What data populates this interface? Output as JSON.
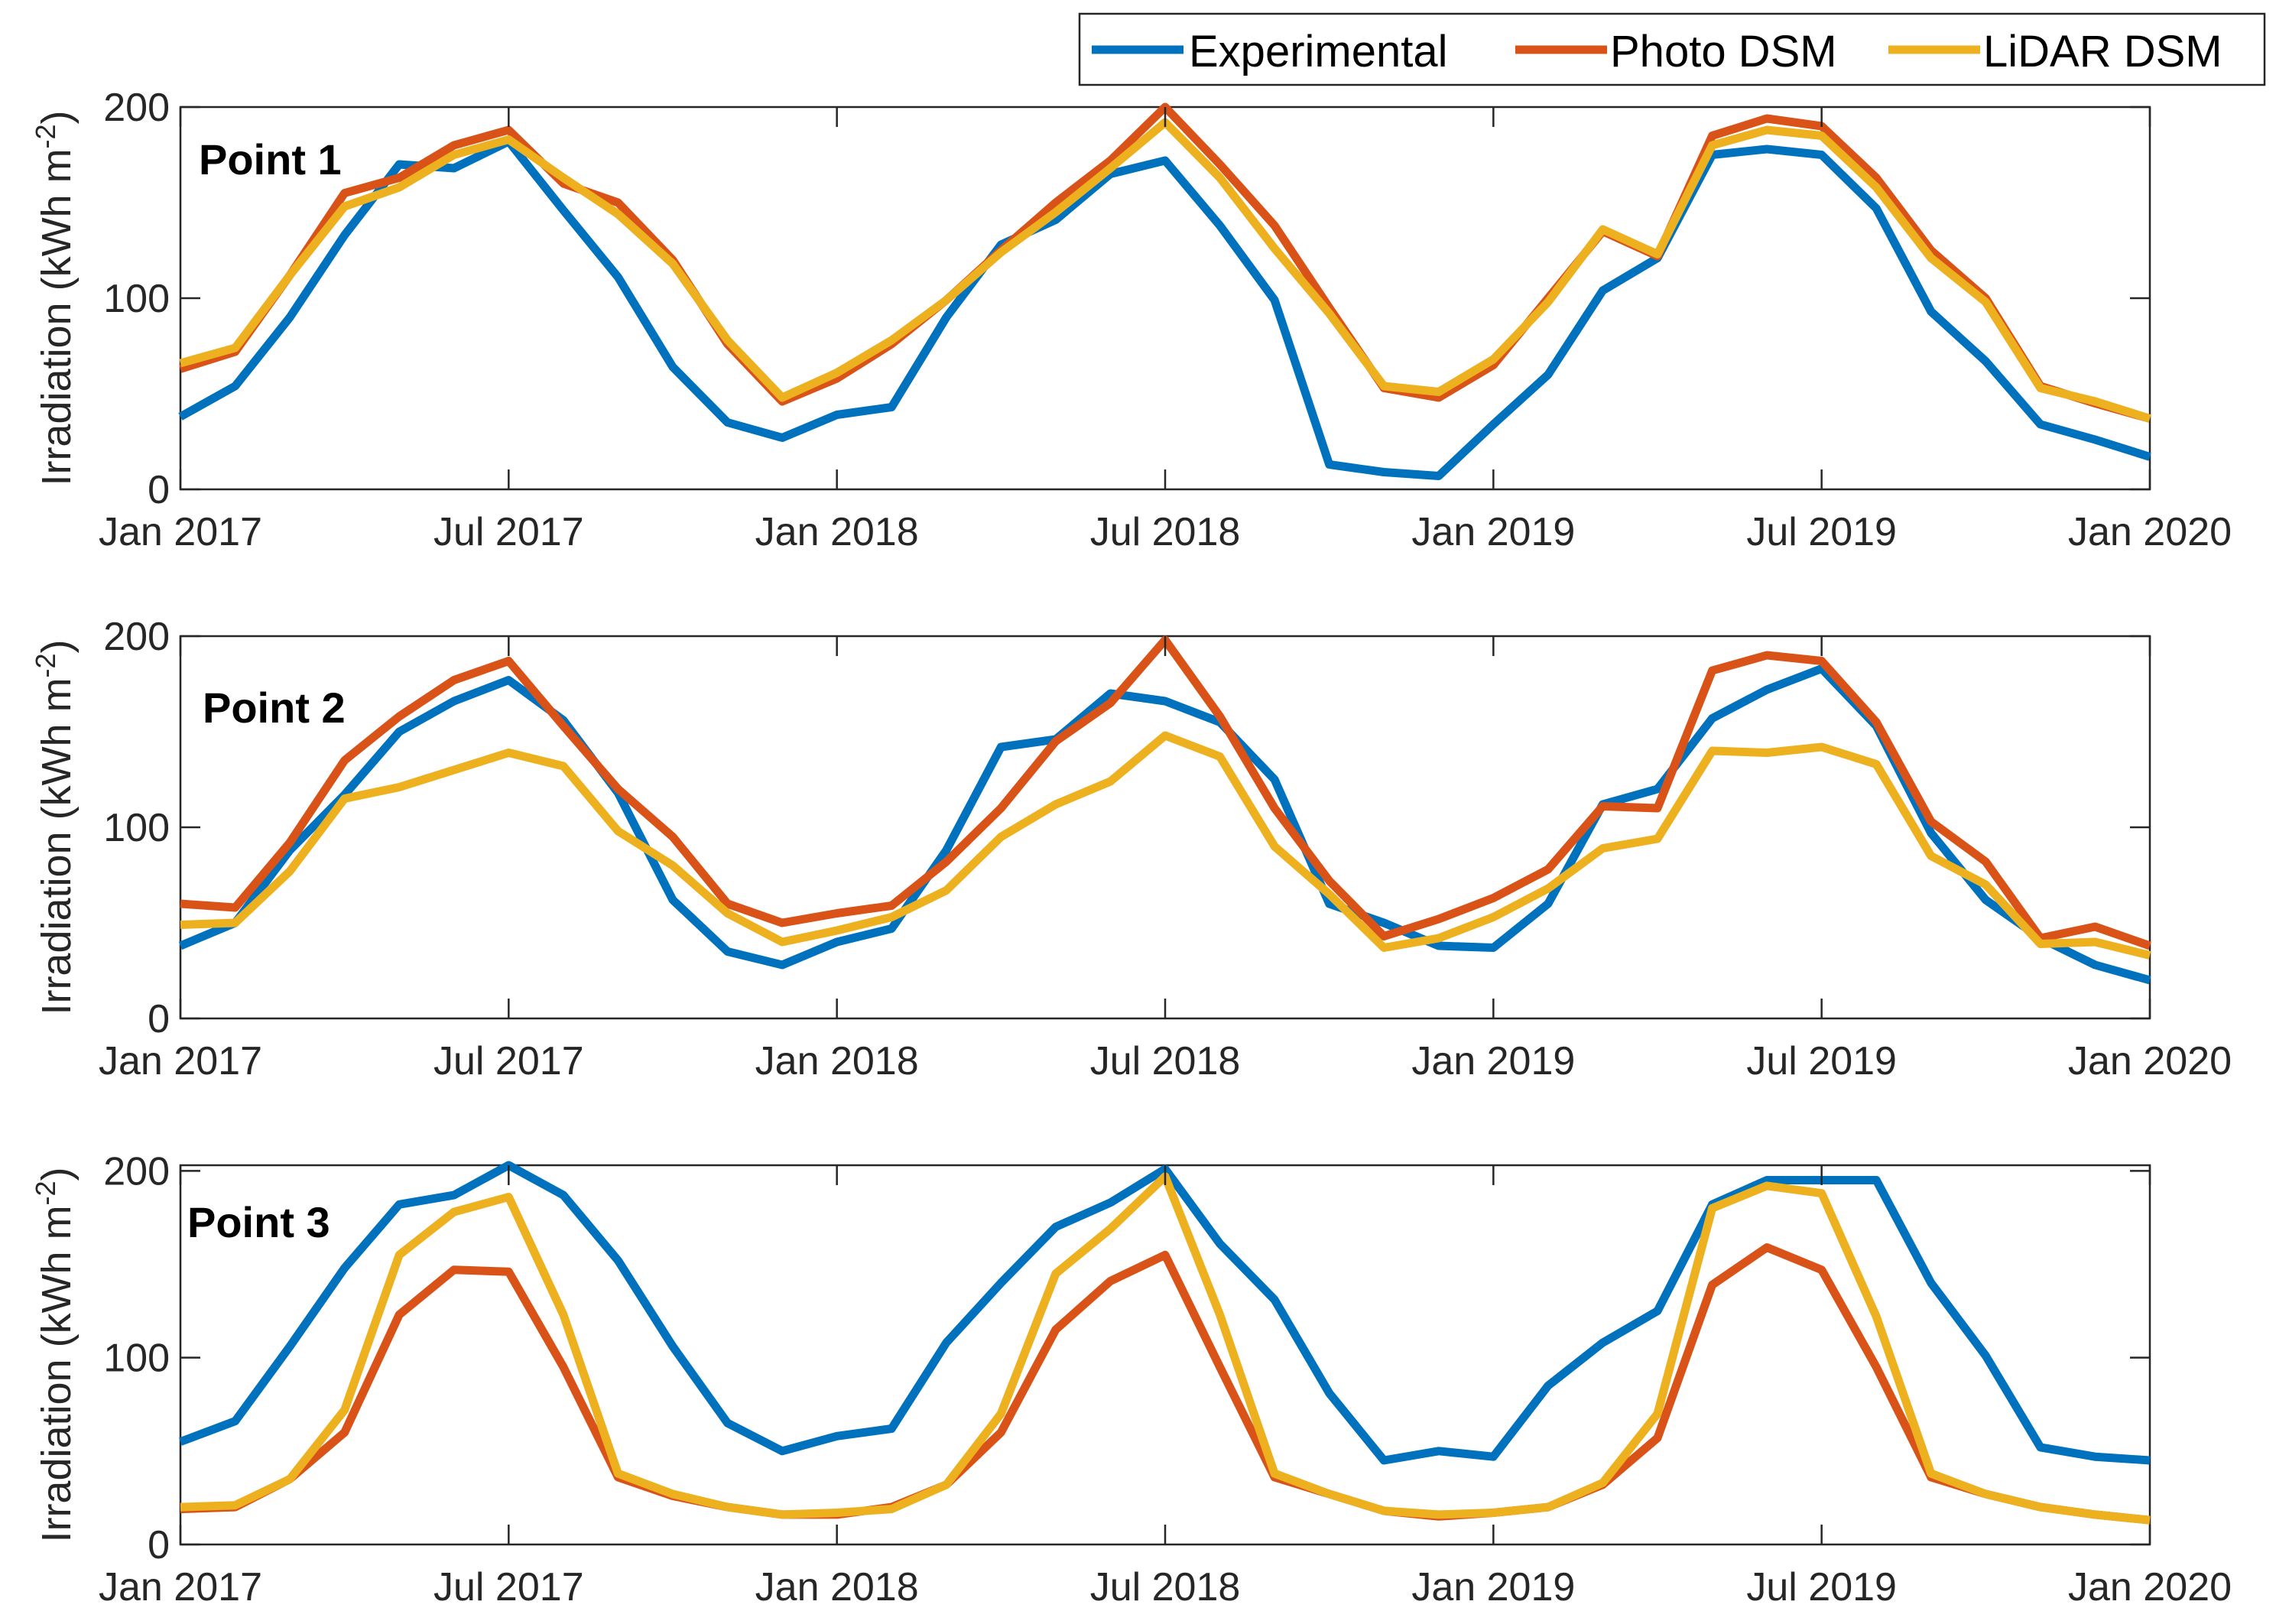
{
  "legend": {
    "items": [
      {
        "label": "Experimental",
        "color": "#0072BD"
      },
      {
        "label": "Photo DSM",
        "color": "#D95319"
      },
      {
        "label": "LiDAR DSM",
        "color": "#EDB120"
      }
    ]
  },
  "chart_data": [
    {
      "type": "line",
      "title": "Point 1",
      "xlabel": "",
      "ylabel": "Irradiation (kWh m",
      "ylabel_sup": "-2",
      "ylabel_close": ")",
      "xlim": [
        0,
        36
      ],
      "ylim": [
        0,
        200
      ],
      "yticks": [
        0,
        100,
        200
      ],
      "ytick_labels": [
        "0",
        "100",
        "200"
      ],
      "xticks": [
        0,
        6,
        12,
        18,
        24,
        30,
        36
      ],
      "xtick_labels": [
        "Jan 2017",
        "Jul 2017",
        "Jan 2018",
        "Jul 2018",
        "Jan 2019",
        "Jul 2019",
        "Jan 2020"
      ],
      "x": [
        0,
        1,
        2,
        3,
        4,
        5,
        6,
        7,
        8,
        9,
        10,
        11,
        12,
        13,
        14,
        15,
        16,
        17,
        18,
        19,
        20,
        21,
        22,
        23,
        24,
        25,
        26,
        27,
        28,
        29,
        30,
        31,
        32,
        33,
        34,
        35,
        36
      ],
      "series": [
        {
          "name": "Experimental",
          "color": "#0072BD",
          "values": [
            38,
            54,
            90,
            133,
            170,
            168,
            182,
            146,
            111,
            64,
            35,
            27,
            39,
            43,
            90,
            128,
            141,
            165,
            172,
            138,
            99,
            13,
            9,
            7,
            34,
            60,
            104,
            121,
            175,
            178,
            175,
            147,
            93,
            67,
            34,
            26,
            17
          ]
        },
        {
          "name": "Photo DSM",
          "color": "#D95319",
          "values": [
            63,
            72,
            112,
            155,
            163,
            180,
            188,
            160,
            150,
            120,
            76,
            46,
            58,
            76,
            99,
            125,
            150,
            172,
            200,
            170,
            138,
            95,
            53,
            48,
            65,
            100,
            135,
            122,
            185,
            194,
            190,
            163,
            125,
            100,
            54,
            45,
            37
          ]
        },
        {
          "name": "LiDAR DSM",
          "color": "#EDB120",
          "values": [
            66,
            74,
            112,
            148,
            158,
            175,
            183,
            163,
            144,
            118,
            78,
            48,
            61,
            78,
            99,
            124,
            145,
            168,
            192,
            163,
            126,
            92,
            54,
            51,
            68,
            98,
            136,
            123,
            180,
            188,
            185,
            158,
            121,
            98,
            53,
            46,
            37
          ]
        }
      ]
    },
    {
      "type": "line",
      "title": "Point 2",
      "xlabel": "",
      "ylabel": "Irradiation (kWh m",
      "ylabel_sup": "-2",
      "ylabel_close": ")",
      "xlim": [
        0,
        36
      ],
      "ylim": [
        0,
        200
      ],
      "yticks": [
        0,
        100,
        200
      ],
      "ytick_labels": [
        "0",
        "100",
        "200"
      ],
      "xticks": [
        0,
        6,
        12,
        18,
        24,
        30,
        36
      ],
      "xtick_labels": [
        "Jan 2017",
        "Jul 2017",
        "Jan 2018",
        "Jul 2018",
        "Jan 2019",
        "Jul 2019",
        "Jan 2020"
      ],
      "x": [
        0,
        1,
        2,
        3,
        4,
        5,
        6,
        7,
        8,
        9,
        10,
        11,
        12,
        13,
        14,
        15,
        16,
        17,
        18,
        19,
        20,
        21,
        22,
        23,
        24,
        25,
        26,
        27,
        28,
        29,
        30,
        31,
        32,
        33,
        34,
        35,
        36
      ],
      "series": [
        {
          "name": "Experimental",
          "color": "#0072BD",
          "values": [
            38,
            50,
            88,
            117,
            150,
            166,
            177,
            156,
            118,
            62,
            35,
            28,
            40,
            47,
            88,
            142,
            146,
            170,
            166,
            155,
            125,
            60,
            50,
            38,
            37,
            60,
            112,
            120,
            157,
            172,
            183,
            153,
            97,
            62,
            42,
            28,
            20
          ]
        },
        {
          "name": "Photo DSM",
          "color": "#D95319",
          "values": [
            60,
            58,
            92,
            135,
            158,
            177,
            187,
            153,
            120,
            95,
            60,
            50,
            55,
            59,
            82,
            110,
            145,
            165,
            198,
            158,
            110,
            72,
            43,
            52,
            63,
            78,
            111,
            110,
            182,
            190,
            187,
            155,
            103,
            82,
            42,
            48,
            38
          ]
        },
        {
          "name": "LiDAR DSM",
          "color": "#EDB120",
          "values": [
            49,
            50,
            77,
            115,
            121,
            130,
            139,
            132,
            98,
            80,
            55,
            40,
            46,
            53,
            67,
            95,
            112,
            124,
            148,
            137,
            90,
            65,
            37,
            42,
            53,
            68,
            89,
            94,
            140,
            139,
            142,
            133,
            85,
            70,
            39,
            40,
            33
          ]
        }
      ]
    },
    {
      "type": "line",
      "title": "Point 3",
      "xlabel": "",
      "ylabel": "Irradiation (kWh m",
      "ylabel_sup": "-2",
      "ylabel_close": ")",
      "xlim": [
        0,
        36
      ],
      "ylim": [
        0,
        203
      ],
      "yticks": [
        0,
        100,
        200
      ],
      "ytick_labels": [
        "0",
        "100",
        "200"
      ],
      "xticks": [
        0,
        6,
        12,
        18,
        24,
        30,
        36
      ],
      "xtick_labels": [
        "Jan 2017",
        "Jul 2017",
        "Jan 2018",
        "Jul 2018",
        "Jan 2019",
        "Jul 2019",
        "Jan 2020"
      ],
      "x": [
        0,
        1,
        2,
        3,
        4,
        5,
        6,
        7,
        8,
        9,
        10,
        11,
        12,
        13,
        14,
        15,
        16,
        17,
        18,
        19,
        20,
        21,
        22,
        23,
        24,
        25,
        26,
        27,
        28,
        29,
        30,
        31,
        32,
        33,
        34,
        35,
        36
      ],
      "series": [
        {
          "name": "Experimental",
          "color": "#0072BD",
          "values": [
            55,
            66,
            106,
            148,
            182,
            187,
            203,
            187,
            152,
            106,
            65,
            50,
            58,
            62,
            108,
            140,
            170,
            183,
            201,
            161,
            131,
            81,
            45,
            50,
            47,
            85,
            108,
            125,
            182,
            195,
            195,
            195,
            140,
            101,
            52,
            47,
            45
          ]
        },
        {
          "name": "Photo DSM",
          "color": "#D95319",
          "values": [
            19,
            20,
            35,
            60,
            123,
            147,
            146,
            95,
            36,
            26,
            20,
            16,
            16,
            20,
            32,
            60,
            115,
            141,
            155,
            95,
            36,
            27,
            18,
            15,
            17,
            20,
            32,
            57,
            139,
            159,
            147,
            95,
            36,
            27,
            20,
            16,
            13
          ]
        },
        {
          "name": "LiDAR DSM",
          "color": "#EDB120",
          "values": [
            20,
            21,
            35,
            72,
            155,
            178,
            186,
            123,
            38,
            27,
            20,
            16,
            17,
            19,
            32,
            70,
            145,
            169,
            197,
            123,
            38,
            27,
            18,
            16,
            17,
            20,
            33,
            70,
            180,
            192,
            188,
            122,
            38,
            27,
            20,
            16,
            13
          ]
        }
      ]
    }
  ]
}
